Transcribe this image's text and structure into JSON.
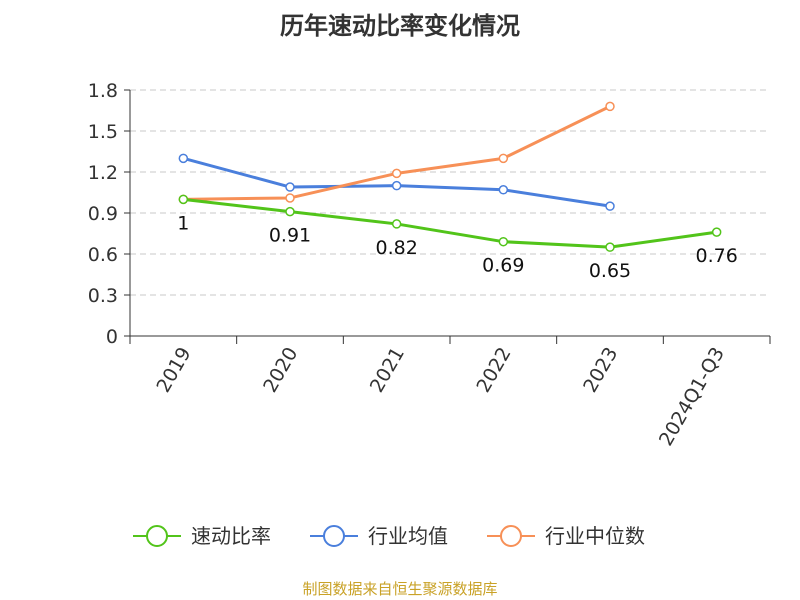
{
  "chart_data": {
    "type": "line",
    "title": "历年速动比率变化情况",
    "categories": [
      "2019",
      "2020",
      "2021",
      "2022",
      "2023",
      "2024Q1-Q3"
    ],
    "ylim": [
      0,
      1.8
    ],
    "yticks": [
      "0",
      "0.3",
      "0.6",
      "0.9",
      "1.2",
      "1.5",
      "1.8"
    ],
    "grid": true,
    "legend_position": "bottom",
    "series": [
      {
        "name": "速动比率",
        "color": "#52c41a",
        "values": [
          1,
          0.91,
          0.82,
          0.69,
          0.65,
          0.76
        ],
        "labels": [
          "1",
          "0.91",
          "0.82",
          "0.69",
          "0.65",
          "0.76"
        ],
        "show_labels": true
      },
      {
        "name": "行业均值",
        "color": "#4a7fdc",
        "values": [
          1.3,
          1.09,
          1.1,
          1.07,
          0.95,
          null
        ],
        "show_labels": false
      },
      {
        "name": "行业中位数",
        "color": "#f79057",
        "values": [
          1.0,
          1.01,
          1.19,
          1.3,
          1.68,
          null
        ],
        "show_labels": false
      }
    ]
  },
  "source": "制图数据来自恒生聚源数据库"
}
